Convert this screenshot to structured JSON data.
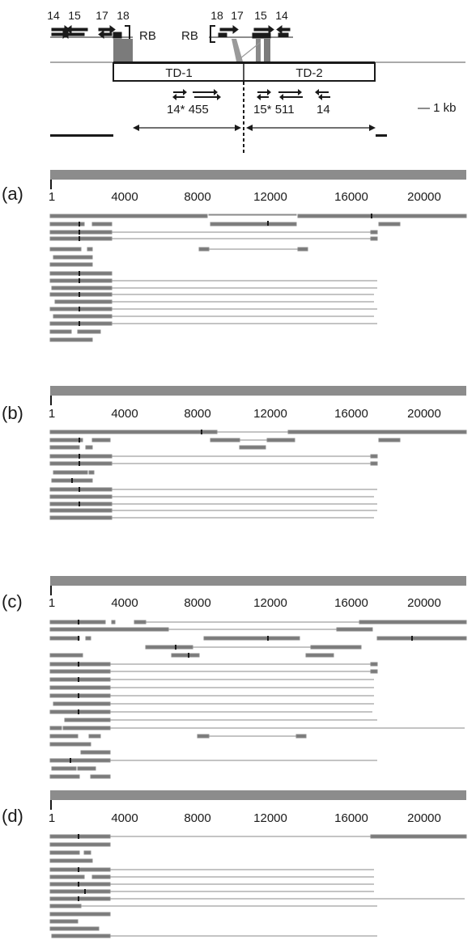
{
  "schematic": {
    "primers_left": [
      "14",
      "15",
      "17",
      "18"
    ],
    "primers_right": [
      "18",
      "17",
      "15",
      "14"
    ],
    "rb_left": "RB",
    "rb_right": "RB",
    "td1": "TD-1",
    "td2": "TD-2",
    "lower_left": "14* 455",
    "lower_right": "15* 511",
    "lower_right_2": "14",
    "scale_label": "— 1 kb"
  },
  "colors": {
    "read": "#7b7b7b",
    "line": "#8a8a8a",
    "ink": "#1a1a1a",
    "reference_bar": "#8c8c8c"
  },
  "panels": [
    {
      "label": "(a)",
      "ticks": [
        "1",
        "4000",
        "8000",
        "12000",
        "16000",
        "20000"
      ]
    },
    {
      "label": "(b)",
      "ticks": [
        "1",
        "4000",
        "8000",
        "12000",
        "16000",
        "20000"
      ]
    },
    {
      "label": "(c)",
      "ticks": [
        "1",
        "4000",
        "8000",
        "12000",
        "16000",
        "20000"
      ]
    },
    {
      "label": "(d)",
      "ticks": [
        "1",
        "4000",
        "8000",
        "12000",
        "16000",
        "20000"
      ]
    }
  ]
}
